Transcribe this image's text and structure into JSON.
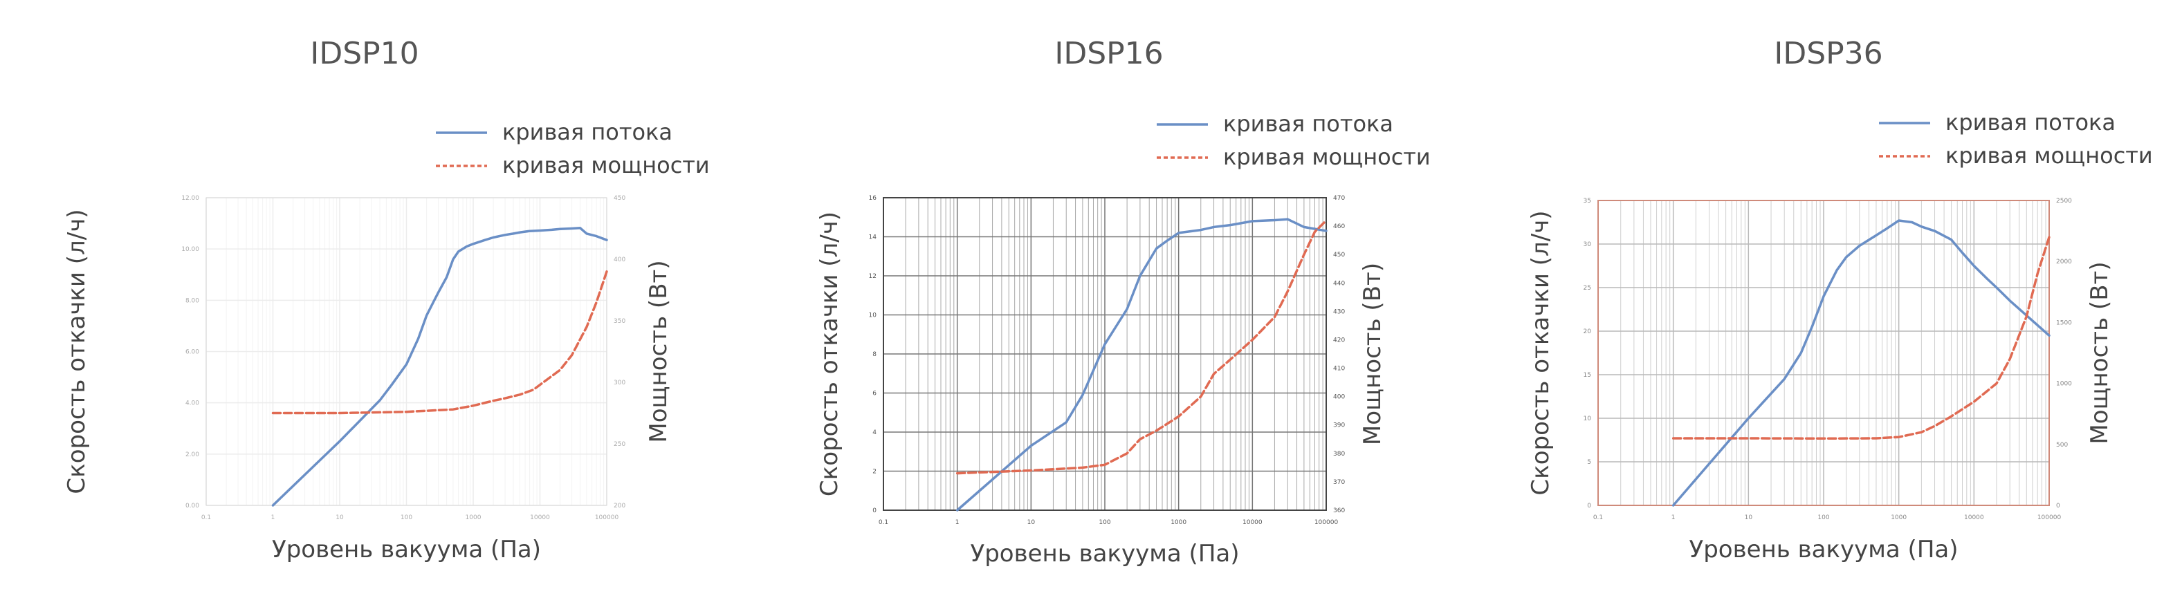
{
  "chart_data": [
    {
      "type": "line",
      "title": "IDSP10",
      "xlabel": "Уровень вакуума (Па)",
      "ylabel": "Скорость откачки (л/ч)",
      "y2label": "Мощность (Вт)",
      "xscale": "log",
      "xlim": [
        0.1,
        100000
      ],
      "x_ticks": [
        "0.1",
        "1",
        "10",
        "100",
        "1000",
        "10000",
        "100000"
      ],
      "ylim": [
        0,
        12
      ],
      "y_ticks": [
        "0.00",
        "2.00",
        "4.00",
        "6.00",
        "8.00",
        "10.00",
        "12.00"
      ],
      "y2lim": [
        200,
        450
      ],
      "y2_ticks": [
        "200",
        "250",
        "300",
        "350",
        "400",
        "450"
      ],
      "grid": true,
      "legend": "top-right",
      "series": [
        {
          "name": "кривая потока",
          "axis": "left",
          "color": "#6a8fc6",
          "x": [
            1,
            10,
            40,
            60,
            100,
            150,
            200,
            250,
            300,
            400,
            500,
            600,
            800,
            1000,
            1500,
            2000,
            3000,
            4000,
            5000,
            7000,
            10000,
            15000,
            20000,
            30000,
            40000,
            50000,
            70000,
            100000
          ],
          "y": [
            0,
            2.5,
            4.1,
            4.7,
            5.5,
            6.5,
            7.4,
            7.9,
            8.3,
            8.9,
            9.6,
            9.9,
            10.1,
            10.2,
            10.35,
            10.45,
            10.55,
            10.6,
            10.65,
            10.7,
            10.72,
            10.75,
            10.78,
            10.8,
            10.82,
            10.6,
            10.5,
            10.35
          ]
        },
        {
          "name": "кривая мощности",
          "axis": "right",
          "color": "#e06a52",
          "x": [
            1,
            10,
            100,
            500,
            1000,
            2000,
            3000,
            5000,
            8000,
            10000,
            20000,
            30000,
            50000,
            70000,
            100000
          ],
          "y": [
            275,
            275,
            276,
            278,
            281,
            285,
            287,
            290,
            294,
            298,
            310,
            322,
            345,
            365,
            390
          ]
        }
      ]
    },
    {
      "type": "line",
      "title": "IDSP16",
      "xlabel": "Уровень вакуума (Па)",
      "ylabel": "Скорость откачки (л/ч)",
      "y2label": "Мощность (Вт)",
      "xscale": "log",
      "xlim": [
        0.1,
        100000
      ],
      "x_ticks": [
        "0.1",
        "1",
        "10",
        "100",
        "1000",
        "10000",
        "100000"
      ],
      "ylim": [
        0,
        16
      ],
      "y_ticks": [
        "0",
        "2",
        "4",
        "6",
        "8",
        "10",
        "12",
        "14",
        "16"
      ],
      "y2lim": [
        360,
        470
      ],
      "y2_ticks": [
        "360",
        "370",
        "380",
        "390",
        "400",
        "410",
        "420",
        "430",
        "440",
        "450",
        "460",
        "470"
      ],
      "grid": true,
      "legend": "top-right",
      "series": [
        {
          "name": "кривая потока",
          "axis": "left",
          "color": "#6a8fc6",
          "x": [
            1,
            10,
            30,
            50,
            100,
            200,
            300,
            500,
            700,
            1000,
            2000,
            3000,
            5000,
            10000,
            20000,
            30000,
            50000,
            100000
          ],
          "y": [
            0,
            3.3,
            4.5,
            5.9,
            8.5,
            10.3,
            12.0,
            13.4,
            13.8,
            14.2,
            14.35,
            14.5,
            14.6,
            14.8,
            14.85,
            14.9,
            14.5,
            14.3
          ]
        },
        {
          "name": "кривая мощности",
          "axis": "right",
          "color": "#e06a52",
          "x": [
            1,
            10,
            50,
            100,
            200,
            300,
            500,
            1000,
            2000,
            3000,
            5000,
            10000,
            20000,
            30000,
            50000,
            70000,
            100000
          ],
          "y": [
            373,
            374,
            375,
            376,
            380,
            385,
            388,
            393,
            400,
            408,
            413,
            420,
            428,
            437,
            450,
            458,
            462
          ]
        }
      ]
    },
    {
      "type": "line",
      "title": "IDSP36",
      "xlabel": "Уровень вакуума (Па)",
      "ylabel": "Скорость откачки (л/ч)",
      "y2label": "Мощность (Вт)",
      "xscale": "log",
      "xlim": [
        0.1,
        100000
      ],
      "x_ticks": [
        "0.1",
        "1",
        "10",
        "100",
        "1000",
        "10000",
        "100000"
      ],
      "ylim": [
        0,
        35
      ],
      "y_ticks": [
        "0",
        "5",
        "10",
        "15",
        "20",
        "25",
        "30",
        "35"
      ],
      "y2lim": [
        0,
        2500
      ],
      "y2_ticks": [
        "0",
        "500",
        "1000",
        "1500",
        "2000",
        "2500"
      ],
      "grid": true,
      "legend": "top-right",
      "series": [
        {
          "name": "кривая потока",
          "axis": "left",
          "color": "#6a8fc6",
          "x": [
            1,
            10,
            30,
            50,
            70,
            100,
            150,
            200,
            300,
            500,
            700,
            1000,
            1500,
            2000,
            3000,
            5000,
            7000,
            10000,
            15000,
            20000,
            30000,
            50000,
            100000
          ],
          "y": [
            0,
            10,
            14.5,
            17.5,
            20.5,
            24,
            27,
            28.5,
            29.8,
            31,
            31.8,
            32.7,
            32.5,
            32.0,
            31.5,
            30.5,
            29.0,
            27.5,
            26.0,
            25.0,
            23.5,
            21.8,
            19.5
          ]
        },
        {
          "name": "кривая мощности",
          "axis": "right",
          "color": "#e06a52",
          "x": [
            1,
            10,
            100,
            500,
            1000,
            2000,
            3000,
            5000,
            10000,
            20000,
            30000,
            50000,
            70000,
            100000
          ],
          "y": [
            550,
            550,
            548,
            550,
            560,
            600,
            650,
            730,
            850,
            1000,
            1200,
            1550,
            1900,
            2200
          ]
        }
      ]
    }
  ]
}
